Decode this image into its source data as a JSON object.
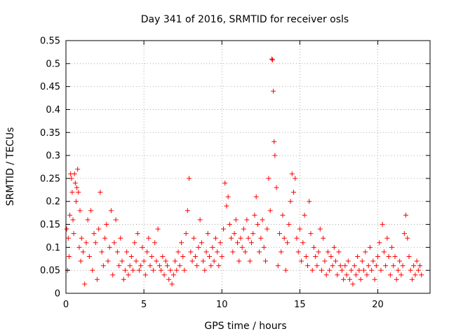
{
  "chart_data": {
    "type": "scatter",
    "title": "Day 341 of 2016, SRMTID for receiver osls",
    "xlabel": "GPS time / hours",
    "ylabel": "SRMTID / TECUs",
    "xlim": [
      0,
      23.35
    ],
    "ylim": [
      0,
      0.55
    ],
    "xticks": [
      0,
      5,
      10,
      15,
      20
    ],
    "xtick_labels": [
      "0",
      "5",
      "10",
      "15",
      "20"
    ],
    "yticks": [
      0,
      0.05,
      0.1,
      0.15,
      0.2,
      0.25,
      0.3,
      0.35,
      0.4,
      0.45,
      0.5,
      0.55
    ],
    "ytick_labels": [
      "0",
      "0.05",
      "0.1",
      "0.15",
      "0.2",
      "0.25",
      "0.3",
      "0.35",
      "0.4",
      "0.45",
      "0.5",
      "0.55"
    ],
    "grid": true,
    "marker": "plus",
    "series": [
      {
        "name": "SRMTID",
        "color": "#ff0000",
        "points": [
          [
            0.05,
            0.14
          ],
          [
            0.1,
            0.05
          ],
          [
            0.15,
            0.12
          ],
          [
            0.2,
            0.08
          ],
          [
            0.25,
            0.17
          ],
          [
            0.3,
            0.26
          ],
          [
            0.35,
            0.25
          ],
          [
            0.4,
            0.22
          ],
          [
            0.45,
            0.16
          ],
          [
            0.5,
            0.13
          ],
          [
            0.55,
            0.26
          ],
          [
            0.6,
            0.24
          ],
          [
            0.65,
            0.2
          ],
          [
            0.7,
            0.23
          ],
          [
            0.75,
            0.27
          ],
          [
            0.8,
            0.22
          ],
          [
            0.85,
            0.1
          ],
          [
            0.9,
            0.18
          ],
          [
            0.95,
            0.07
          ],
          [
            1.0,
            0.12
          ],
          [
            1.1,
            0.09
          ],
          [
            1.2,
            0.02
          ],
          [
            1.3,
            0.11
          ],
          [
            1.4,
            0.16
          ],
          [
            1.5,
            0.08
          ],
          [
            1.6,
            0.18
          ],
          [
            1.7,
            0.05
          ],
          [
            1.8,
            0.13
          ],
          [
            1.9,
            0.11
          ],
          [
            2.0,
            0.03
          ],
          [
            2.1,
            0.14
          ],
          [
            2.2,
            0.22
          ],
          [
            2.3,
            0.09
          ],
          [
            2.4,
            0.06
          ],
          [
            2.5,
            0.12
          ],
          [
            2.6,
            0.15
          ],
          [
            2.7,
            0.07
          ],
          [
            2.8,
            0.1
          ],
          [
            2.9,
            0.18
          ],
          [
            3.0,
            0.04
          ],
          [
            3.1,
            0.11
          ],
          [
            3.2,
            0.16
          ],
          [
            3.3,
            0.09
          ],
          [
            3.4,
            0.06
          ],
          [
            3.5,
            0.12
          ],
          [
            3.6,
            0.07
          ],
          [
            3.7,
            0.03
          ],
          [
            3.8,
            0.05
          ],
          [
            3.9,
            0.09
          ],
          [
            4.0,
            0.04
          ],
          [
            4.1,
            0.06
          ],
          [
            4.2,
            0.08
          ],
          [
            4.3,
            0.05
          ],
          [
            4.4,
            0.11
          ],
          [
            4.5,
            0.07
          ],
          [
            4.6,
            0.13
          ],
          [
            4.7,
            0.05
          ],
          [
            4.8,
            0.06
          ],
          [
            4.9,
            0.1
          ],
          [
            5.0,
            0.07
          ],
          [
            5.1,
            0.04
          ],
          [
            5.2,
            0.09
          ],
          [
            5.3,
            0.12
          ],
          [
            5.4,
            0.06
          ],
          [
            5.5,
            0.08
          ],
          [
            5.6,
            0.05
          ],
          [
            5.7,
            0.11
          ],
          [
            5.8,
            0.07
          ],
          [
            5.9,
            0.14
          ],
          [
            6.0,
            0.06
          ],
          [
            6.1,
            0.05
          ],
          [
            6.2,
            0.08
          ],
          [
            6.3,
            0.04
          ],
          [
            6.4,
            0.07
          ],
          [
            6.5,
            0.06
          ],
          [
            6.6,
            0.03
          ],
          [
            6.7,
            0.05
          ],
          [
            6.8,
            0.02
          ],
          [
            6.9,
            0.04
          ],
          [
            7.0,
            0.07
          ],
          [
            7.1,
            0.05
          ],
          [
            7.2,
            0.09
          ],
          [
            7.3,
            0.06
          ],
          [
            7.4,
            0.11
          ],
          [
            7.5,
            0.08
          ],
          [
            7.6,
            0.05
          ],
          [
            7.7,
            0.13
          ],
          [
            7.8,
            0.18
          ],
          [
            7.9,
            0.25
          ],
          [
            8.0,
            0.09
          ],
          [
            8.1,
            0.07
          ],
          [
            8.2,
            0.12
          ],
          [
            8.3,
            0.08
          ],
          [
            8.4,
            0.06
          ],
          [
            8.5,
            0.1
          ],
          [
            8.6,
            0.16
          ],
          [
            8.7,
            0.11
          ],
          [
            8.8,
            0.07
          ],
          [
            8.9,
            0.05
          ],
          [
            9.0,
            0.09
          ],
          [
            9.1,
            0.13
          ],
          [
            9.2,
            0.08
          ],
          [
            9.3,
            0.06
          ],
          [
            9.4,
            0.1
          ],
          [
            9.5,
            0.07
          ],
          [
            9.6,
            0.12
          ],
          [
            9.7,
            0.09
          ],
          [
            9.8,
            0.06
          ],
          [
            9.9,
            0.11
          ],
          [
            10.0,
            0.08
          ],
          [
            10.1,
            0.14
          ],
          [
            10.2,
            0.24
          ],
          [
            10.3,
            0.19
          ],
          [
            10.4,
            0.21
          ],
          [
            10.5,
            0.15
          ],
          [
            10.6,
            0.12
          ],
          [
            10.7,
            0.09
          ],
          [
            10.8,
            0.13
          ],
          [
            10.9,
            0.16
          ],
          [
            11.0,
            0.11
          ],
          [
            11.1,
            0.07
          ],
          [
            11.2,
            0.12
          ],
          [
            11.3,
            0.1
          ],
          [
            11.4,
            0.14
          ],
          [
            11.5,
            0.09
          ],
          [
            11.6,
            0.16
          ],
          [
            11.7,
            0.12
          ],
          [
            11.8,
            0.07
          ],
          [
            11.9,
            0.11
          ],
          [
            12.0,
            0.13
          ],
          [
            12.1,
            0.17
          ],
          [
            12.2,
            0.21
          ],
          [
            12.3,
            0.15
          ],
          [
            12.4,
            0.09
          ],
          [
            12.5,
            0.12
          ],
          [
            12.6,
            0.16
          ],
          [
            12.7,
            0.1
          ],
          [
            12.8,
            0.07
          ],
          [
            12.9,
            0.14
          ],
          [
            13.0,
            0.25
          ],
          [
            13.1,
            0.18
          ],
          [
            13.2,
            0.51
          ],
          [
            13.25,
            0.508
          ],
          [
            13.3,
            0.44
          ],
          [
            13.35,
            0.33
          ],
          [
            13.4,
            0.3
          ],
          [
            13.5,
            0.23
          ],
          [
            13.6,
            0.06
          ],
          [
            13.7,
            0.13
          ],
          [
            13.8,
            0.09
          ],
          [
            13.9,
            0.17
          ],
          [
            14.0,
            0.12
          ],
          [
            14.1,
            0.05
          ],
          [
            14.2,
            0.11
          ],
          [
            14.3,
            0.15
          ],
          [
            14.4,
            0.2
          ],
          [
            14.5,
            0.26
          ],
          [
            14.6,
            0.22
          ],
          [
            14.7,
            0.25
          ],
          [
            14.8,
            0.12
          ],
          [
            14.9,
            0.09
          ],
          [
            15.0,
            0.14
          ],
          [
            15.1,
            0.07
          ],
          [
            15.2,
            0.11
          ],
          [
            15.3,
            0.17
          ],
          [
            15.4,
            0.08
          ],
          [
            15.5,
            0.06
          ],
          [
            15.6,
            0.2
          ],
          [
            15.7,
            0.13
          ],
          [
            15.8,
            0.05
          ],
          [
            15.9,
            0.1
          ],
          [
            16.0,
            0.08
          ],
          [
            16.1,
            0.06
          ],
          [
            16.2,
            0.09
          ],
          [
            16.3,
            0.14
          ],
          [
            16.4,
            0.05
          ],
          [
            16.5,
            0.12
          ],
          [
            16.6,
            0.07
          ],
          [
            16.7,
            0.04
          ],
          [
            16.8,
            0.09
          ],
          [
            16.9,
            0.05
          ],
          [
            17.0,
            0.08
          ],
          [
            17.1,
            0.06
          ],
          [
            17.2,
            0.1
          ],
          [
            17.3,
            0.07
          ],
          [
            17.4,
            0.04
          ],
          [
            17.5,
            0.09
          ],
          [
            17.6,
            0.06
          ],
          [
            17.7,
            0.05
          ],
          [
            17.8,
            0.03
          ],
          [
            17.9,
            0.06
          ],
          [
            18.0,
            0.04
          ],
          [
            18.1,
            0.07
          ],
          [
            18.2,
            0.03
          ],
          [
            18.3,
            0.05
          ],
          [
            18.4,
            0.02
          ],
          [
            18.5,
            0.06
          ],
          [
            18.6,
            0.04
          ],
          [
            18.7,
            0.08
          ],
          [
            18.8,
            0.05
          ],
          [
            18.9,
            0.03
          ],
          [
            19.0,
            0.07
          ],
          [
            19.1,
            0.05
          ],
          [
            19.2,
            0.09
          ],
          [
            19.3,
            0.04
          ],
          [
            19.4,
            0.06
          ],
          [
            19.5,
            0.1
          ],
          [
            19.6,
            0.05
          ],
          [
            19.7,
            0.07
          ],
          [
            19.8,
            0.03
          ],
          [
            19.9,
            0.06
          ],
          [
            20.0,
            0.08
          ],
          [
            20.1,
            0.11
          ],
          [
            20.2,
            0.05
          ],
          [
            20.3,
            0.15
          ],
          [
            20.4,
            0.09
          ],
          [
            20.5,
            0.06
          ],
          [
            20.6,
            0.12
          ],
          [
            20.7,
            0.08
          ],
          [
            20.8,
            0.04
          ],
          [
            20.9,
            0.1
          ],
          [
            21.0,
            0.06
          ],
          [
            21.1,
            0.08
          ],
          [
            21.2,
            0.03
          ],
          [
            21.3,
            0.05
          ],
          [
            21.4,
            0.07
          ],
          [
            21.5,
            0.04
          ],
          [
            21.6,
            0.06
          ],
          [
            21.7,
            0.13
          ],
          [
            21.8,
            0.17
          ],
          [
            21.9,
            0.12
          ],
          [
            22.0,
            0.08
          ],
          [
            22.1,
            0.05
          ],
          [
            22.2,
            0.03
          ],
          [
            22.3,
            0.06
          ],
          [
            22.4,
            0.04
          ],
          [
            22.5,
            0.07
          ],
          [
            22.6,
            0.05
          ],
          [
            22.7,
            0.06
          ],
          [
            22.8,
            0.04
          ]
        ]
      }
    ]
  }
}
